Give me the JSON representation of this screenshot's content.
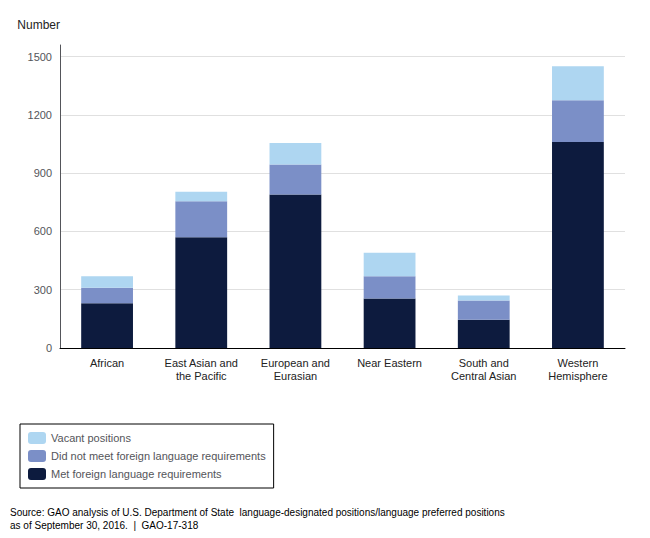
{
  "chart_data": {
    "type": "bar",
    "stacked": true,
    "ylabel": "Number",
    "categories": [
      "African",
      "East Asian and\nthe Pacific",
      "European and\nEurasian",
      "Near Eastern",
      "South and\nCentral Asian",
      "Western\nHemisphere"
    ],
    "series": [
      {
        "name": "Met foreign language requirements",
        "color": "#0d1b3e",
        "values": [
          230,
          570,
          790,
          255,
          145,
          1060
        ]
      },
      {
        "name": "Did not meet foreign language requirements",
        "color": "#7b8fc7",
        "values": [
          80,
          185,
          155,
          115,
          100,
          215
        ]
      },
      {
        "name": "Vacant positions",
        "color": "#aed6f1",
        "values": [
          60,
          50,
          110,
          120,
          25,
          175
        ]
      }
    ],
    "ylim": [
      0,
      1560
    ],
    "yticks": [
      0,
      300,
      600,
      900,
      1200,
      1500
    ],
    "grid": true,
    "legend": "bottom",
    "annotation": "Source: GAO analysis of U.S. Department of State  language-designated positions/language preferred positions\nas of September 30, 2016.  |  GAO-17-318"
  }
}
